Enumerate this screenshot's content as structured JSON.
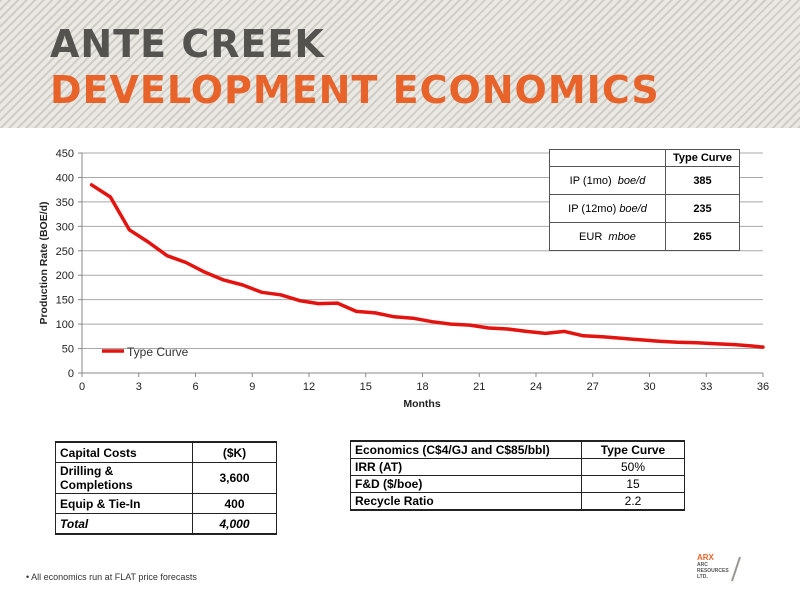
{
  "header": {
    "title_line1": "ANTE CREEK",
    "title_line2": "DEVELOPMENT ECONOMICS"
  },
  "chart_data": {
    "type": "line",
    "xlabel": "Months",
    "ylabel": "Production Rate (BOE/d)",
    "xlim": [
      0,
      36
    ],
    "ylim": [
      0,
      450
    ],
    "xticks": [
      0,
      3,
      6,
      9,
      12,
      15,
      18,
      21,
      24,
      27,
      30,
      33,
      36
    ],
    "yticks": [
      0,
      50,
      100,
      150,
      200,
      250,
      300,
      350,
      400,
      450
    ],
    "grid": "horizontal",
    "legend_position": "left",
    "color": "#e3140f",
    "series": [
      {
        "name": "Type Curve",
        "x": [
          0.5,
          1.5,
          2.5,
          3.5,
          4.5,
          5.5,
          6.5,
          7.5,
          8.5,
          9.5,
          10.5,
          11.5,
          12.5,
          13.5,
          14.5,
          15.5,
          16.5,
          17.5,
          18.5,
          19.5,
          20.5,
          21.5,
          22.5,
          23.5,
          24.5,
          25.5,
          26.5,
          27.5,
          28.5,
          29.5,
          30.5,
          31.5,
          32.5,
          33.5,
          34.5,
          35.5,
          36
        ],
        "y": [
          385,
          360,
          293,
          268,
          240,
          226,
          206,
          190,
          180,
          165,
          160,
          148,
          142,
          143,
          126,
          123,
          115,
          112,
          105,
          100,
          98,
          92,
          90,
          85,
          81,
          85,
          76,
          74,
          71,
          68,
          65,
          63,
          62,
          60,
          58,
          55,
          53
        ]
      }
    ]
  },
  "kpi_table": {
    "header": "Type Curve",
    "rows": [
      {
        "label": "IP (1mo)",
        "unit": "boe/d",
        "value": "385"
      },
      {
        "label": "IP (12mo)",
        "unit": "boe/d",
        "value": "235"
      },
      {
        "label": "EUR",
        "unit": "mboe",
        "value": "265"
      }
    ]
  },
  "capital_costs": {
    "header_label": "Capital Costs",
    "header_unit": "($K)",
    "rows": [
      {
        "label": "Drilling & Completions",
        "value": "3,600"
      },
      {
        "label": "Equip & Tie-In",
        "value": "400"
      }
    ],
    "total_label": "Total",
    "total_value": "4,000"
  },
  "economics": {
    "header_label": "Economics  (C$4/GJ and C$85/bbl)",
    "header_value": "Type Curve",
    "rows": [
      {
        "label": "IRR (AT)",
        "value": "50%"
      },
      {
        "label": "F&D ($/boe)",
        "value": "15"
      },
      {
        "label": "Recycle Ratio",
        "value": "2.2"
      }
    ]
  },
  "footnote": "• All economics run at FLAT price forecasts",
  "logo": {
    "mark": "ARX",
    "line1": "ARC",
    "line2": "RESOURCES",
    "line3": "LTD."
  }
}
